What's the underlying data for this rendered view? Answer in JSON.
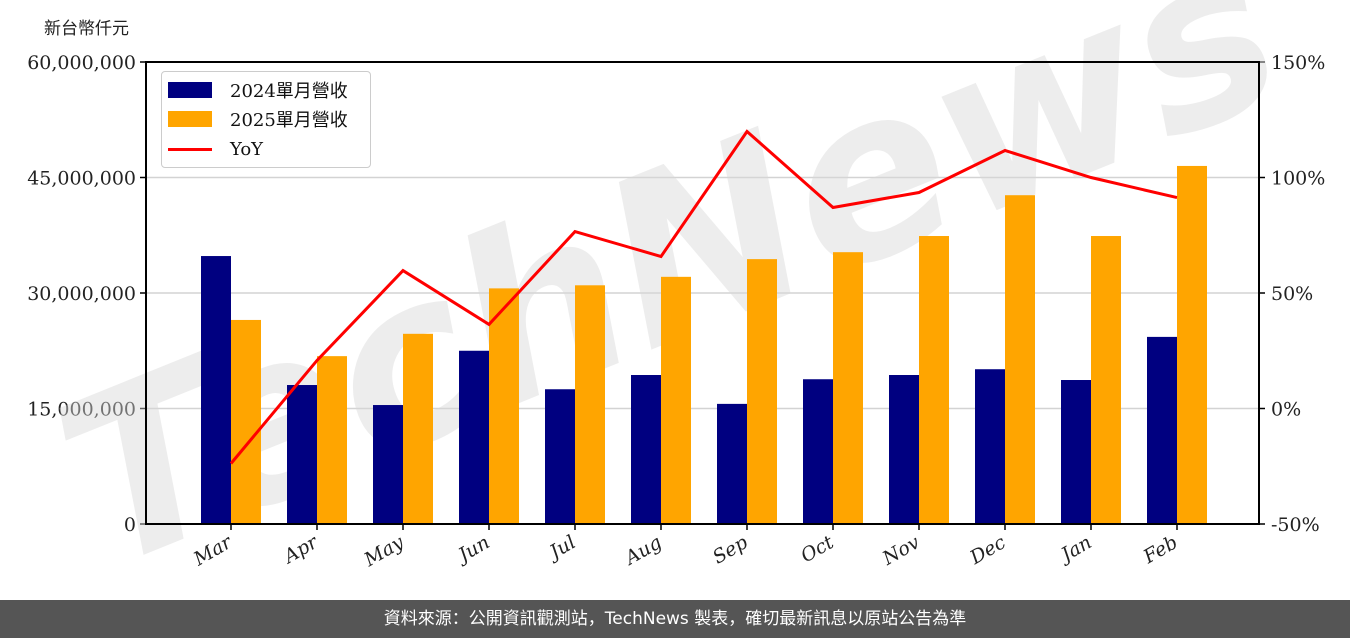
{
  "unit_label": "新台幣仟元",
  "footer": "資料來源：公開資訊觀測站，TechNews 製表，確切最新訊息以原站公告為準",
  "watermark": "TechNews",
  "colors": {
    "series_2024": "#000080",
    "series_2025": "#FFA500",
    "yoy": "#FF0000",
    "grid": "#d3d3d3",
    "footer_bg": "#555555"
  },
  "legend": [
    {
      "label": "2024單月營收",
      "type": "bar",
      "color": "#000080"
    },
    {
      "label": "2025單月營收",
      "type": "bar",
      "color": "#FFA500"
    },
    {
      "label": "YoY",
      "type": "line",
      "color": "#FF0000"
    }
  ],
  "chart_data": {
    "type": "bar+line",
    "title": "",
    "ylabel": "新台幣仟元",
    "y2label": "YoY",
    "categories": [
      "Mar",
      "Apr",
      "May",
      "Jun",
      "Jul",
      "Aug",
      "Sep",
      "Oct",
      "Nov",
      "Dec",
      "Jan",
      "Feb"
    ],
    "series": [
      {
        "name": "2024單月營收",
        "type": "bar",
        "axis": "left",
        "values": [
          34800000,
          18050000,
          15450000,
          22500000,
          17500000,
          19350000,
          15600000,
          18800000,
          19350000,
          20100000,
          18700000,
          24300000
        ]
      },
      {
        "name": "2025單月營收",
        "type": "bar",
        "axis": "left",
        "values": [
          26500000,
          21800000,
          24700000,
          30600000,
          31000000,
          32100000,
          34400000,
          35300000,
          37400000,
          42700000,
          37400000,
          46500000
        ]
      },
      {
        "name": "YoY",
        "type": "line",
        "axis": "right",
        "unit": "%",
        "values": [
          -23.8,
          20.8,
          59.7,
          36.4,
          76.6,
          65.8,
          119.9,
          87.0,
          93.5,
          111.7,
          100.0,
          91.3
        ]
      }
    ],
    "ylim": [
      0,
      60000000
    ],
    "yticks": [
      "0",
      "15,000,000",
      "30,000,000",
      "45,000,000",
      "60,000,000"
    ],
    "y2lim": [
      -50,
      150
    ],
    "y2ticks": [
      "-50%",
      "0%",
      "50%",
      "100%",
      "150%"
    ],
    "grid": true,
    "legend_position": "upper left"
  }
}
